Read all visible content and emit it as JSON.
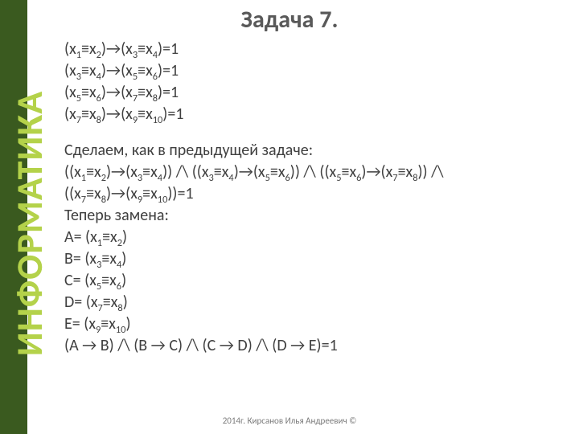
{
  "side_label": "ИНФОРМАТИКА",
  "title": "Задача 7.",
  "lines": {
    "eq1": "(x<sub>1</sub>≡x<sub>2</sub>)→(x<sub>3</sub>≡x<sub>4</sub>)=1",
    "eq2": "(x<sub>3</sub>≡x<sub>4</sub>)→(x<sub>5</sub>≡x<sub>6</sub>)=1",
    "eq3": "(x<sub>5</sub>≡x<sub>6</sub>)→(x<sub>7</sub>≡x<sub>8</sub>)=1",
    "eq4": "(x<sub>7</sub>≡x<sub>8</sub>)→(x<sub>9</sub>≡x<sub>10</sub>)=1",
    "t1": "Сделаем, как в предыдущей задаче:",
    "eq5": "((x<sub>1</sub>≡x<sub>2</sub>)→(x<sub>3</sub>≡x<sub>4</sub>)) /\\ ((x<sub>3</sub>≡x<sub>4</sub>)→(x<sub>5</sub>≡x<sub>6</sub>)) /\\ ((x<sub>5</sub>≡x<sub>6</sub>)→(x<sub>7</sub>≡x<sub>8</sub>)) /\\",
    "eq6": "((x<sub>7</sub>≡x<sub>8</sub>)→(x<sub>9</sub>≡x<sub>10</sub>))=1",
    "t2": "Теперь замена:",
    "a": "A= (x<sub>1</sub>≡x<sub>2</sub>)",
    "b": "B= (x<sub>3</sub>≡x<sub>4</sub>)",
    "c": "C= (x<sub>5</sub>≡x<sub>6</sub>)",
    "d": "D= (x<sub>7</sub>≡x<sub>8</sub>)",
    "e": "E= (x<sub>9</sub>≡x<sub>10</sub>)",
    "final": "(A → B) /\\ (B → C) /\\ (C → D) /\\ (D → E)=1"
  },
  "footer": "2014г. Кирсанов Илья Андреевич ©",
  "colors": {
    "stripe": "#3a5a1f",
    "side_text": "#b4d24a",
    "title": "#595959",
    "body": "#404040",
    "footer": "#7a7a7a",
    "bg": "#ffffff"
  }
}
